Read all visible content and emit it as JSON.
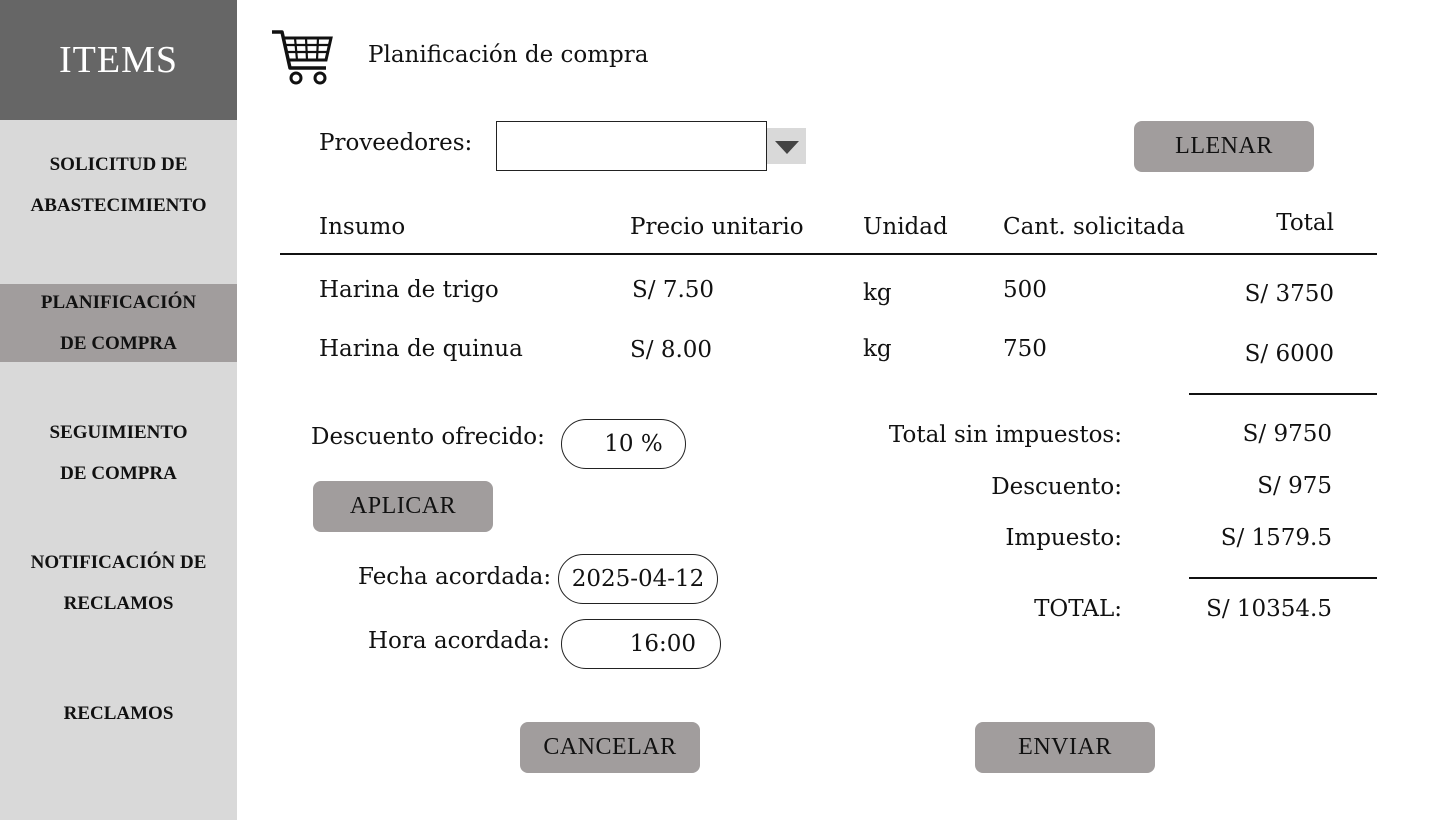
{
  "sidebar": {
    "title": "ITEMS",
    "items": [
      {
        "line1": "SOLICITUD DE",
        "line2": "ABASTECIMIENTO"
      },
      {
        "line1": "PLANIFICACIÓN",
        "line2": "DE COMPRA"
      },
      {
        "line1": "SEGUIMIENTO",
        "line2": "DE COMPRA"
      },
      {
        "line1": "NOTIFICACIÓN DE",
        "line2": "RECLAMOS"
      },
      {
        "line1": "RECLAMOS",
        "line2": ""
      }
    ]
  },
  "header": {
    "icon": "shopping-cart-icon",
    "title": "Planificación de compra"
  },
  "supplier": {
    "label": "Proveedores:",
    "value": "",
    "fill_button": "LLENAR"
  },
  "table": {
    "headers": [
      "Insumo",
      "Precio unitario",
      "Unidad",
      "Cant. solicitada",
      "Total"
    ],
    "rows": [
      {
        "insumo": "Harina de trigo",
        "precio": "S/ 7.50",
        "unidad": "kg",
        "cantidad": "500",
        "total": "S/ 3750"
      },
      {
        "insumo": "Harina de quinua",
        "precio": "S/ 8.00",
        "unidad": "kg",
        "cantidad": "750",
        "total": "S/ 6000"
      }
    ]
  },
  "discount": {
    "label": "Descuento ofrecido:",
    "value": "10 %",
    "apply_button": "APLICAR"
  },
  "agreement": {
    "date_label": "Fecha acordada:",
    "date_value": "2025-04-12",
    "time_label": "Hora acordada:",
    "time_value": "16:00"
  },
  "summary": {
    "subtotal_label": "Total sin impuestos:",
    "subtotal_value": "S/ 9750",
    "discount_label": "Descuento:",
    "discount_value": "S/ 975",
    "tax_label": "Impuesto:",
    "tax_value": "S/ 1579.5",
    "total_label": "TOTAL:",
    "total_value": "S/ 10354.5"
  },
  "actions": {
    "cancel": "CANCELAR",
    "send": "ENVIAR"
  }
}
